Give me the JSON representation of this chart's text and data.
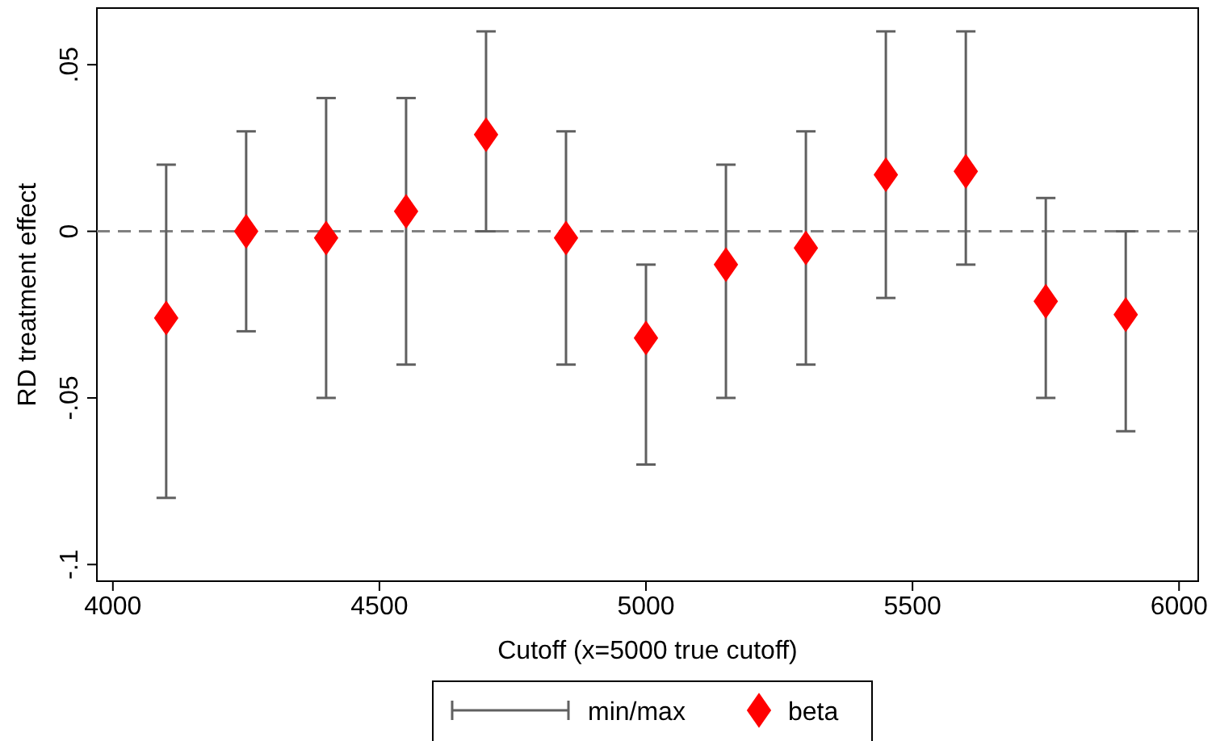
{
  "chart_data": {
    "type": "scatter",
    "xlabel": "Cutoff (x=5000 true cutoff)",
    "ylabel": "RD treatment effect",
    "x": [
      4100,
      4250,
      4400,
      4550,
      4700,
      4850,
      5000,
      5150,
      5300,
      5450,
      5600,
      5750,
      5900
    ],
    "series": [
      {
        "name": "beta",
        "color": "#ff0000",
        "values": [
          -0.026,
          0,
          -0.002,
          0.006,
          0.029,
          -0.002,
          -0.032,
          -0.01,
          -0.005,
          0.017,
          0.018,
          -0.021,
          -0.025
        ],
        "errors": [
          [
            -0.08,
            0.02
          ],
          [
            -0.03,
            0.03
          ],
          [
            -0.05,
            0.04
          ],
          [
            -0.04,
            0.04
          ],
          [
            0,
            0.06
          ],
          [
            -0.04,
            0.03
          ],
          [
            -0.07,
            -0.01
          ],
          [
            -0.05,
            0.02
          ],
          [
            -0.04,
            0.03
          ],
          [
            -0.02,
            0.06
          ],
          [
            -0.01,
            0.06
          ],
          [
            -0.05,
            0.01
          ],
          [
            -0.06,
            0
          ]
        ]
      }
    ],
    "annotations": [
      "min/max"
    ],
    "marker": "diamond",
    "legend": "bottom",
    "grid": false,
    "xlim": [
      3970,
      6036
    ],
    "xticks": [
      4000,
      4500,
      5000,
      5500,
      6000
    ],
    "ylim": [
      -0.105,
      0.067
    ],
    "yticks": [
      {
        "value": 0.05,
        "label": ".05"
      },
      0,
      {
        "value": -0.05,
        "label": "-.05"
      },
      {
        "value": -0.1,
        "label": "-.1"
      }
    ],
    "ref_lines": [
      {
        "axis": "y",
        "value": 0,
        "color": "#808080",
        "line_style": "dashed"
      }
    ]
  }
}
